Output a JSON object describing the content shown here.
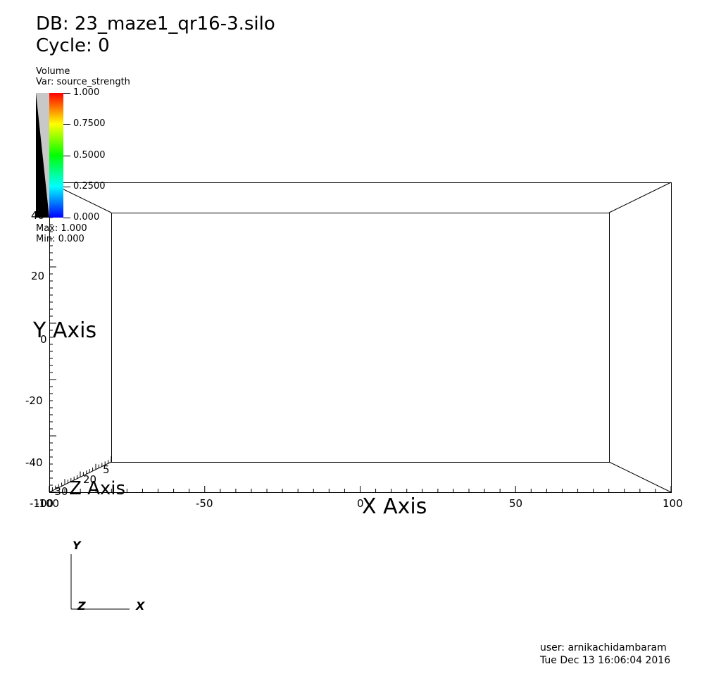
{
  "header": {
    "db_label": "DB: 23_maze1_qr16-3.silo",
    "cycle_label": "Cycle: 0"
  },
  "legend": {
    "plot_type": "Volume",
    "variable": "Var: source_strength",
    "ticks": [
      "1.000",
      "0.7500",
      "0.5000",
      "0.2500",
      "0.000"
    ],
    "max_label": "Max:  1.000",
    "min_label": "Min:  0.000"
  },
  "axes": {
    "x_title": "X Axis",
    "y_title": "Y Axis",
    "z_title": "Z Axis",
    "x_ticks": [
      "-100",
      "-50",
      "0",
      "50",
      "100"
    ],
    "y_ticks": [
      "40",
      "20",
      "0",
      "-20",
      "-40"
    ],
    "z_ticks": [
      "20",
      "5",
      "-30",
      "-100"
    ]
  },
  "triad": {
    "x": "X",
    "y": "Y",
    "z": "Z"
  },
  "footer": {
    "user": "user: arnikachidambaram",
    "timestamp": "Tue Dec 13 16:06:04 2016"
  }
}
